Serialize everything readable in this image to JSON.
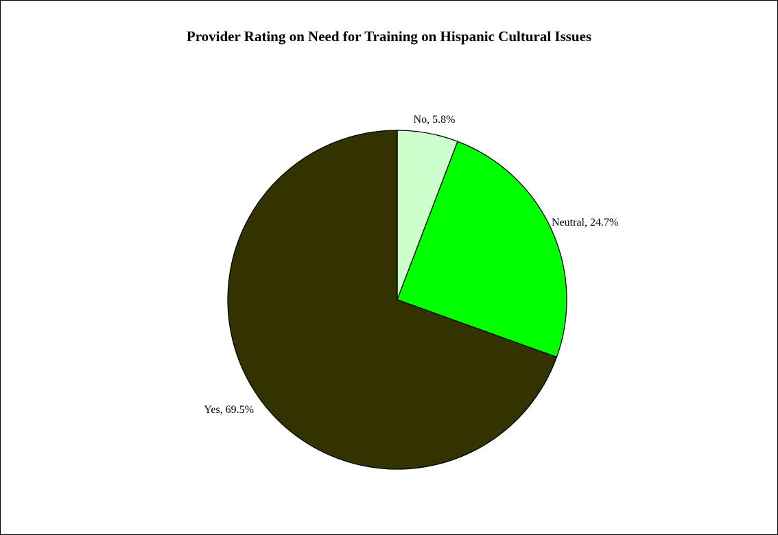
{
  "chart_data": {
    "type": "pie",
    "title": "Provider Rating on Need for Training on Hispanic Cultural Issues",
    "slices": [
      {
        "label": "No",
        "value": 5.8,
        "display": "No, 5.8%",
        "color": "#ccffcc"
      },
      {
        "label": "Neutral",
        "value": 24.7,
        "display": "Neutral, 24.7%",
        "color": "#00ff00"
      },
      {
        "label": "Yes",
        "value": 69.5,
        "display": "Yes, 69.5%",
        "color": "#333300"
      }
    ],
    "start_angle": "12 o'clock",
    "direction": "clockwise",
    "legend": "none",
    "outline_color": "#000000"
  }
}
